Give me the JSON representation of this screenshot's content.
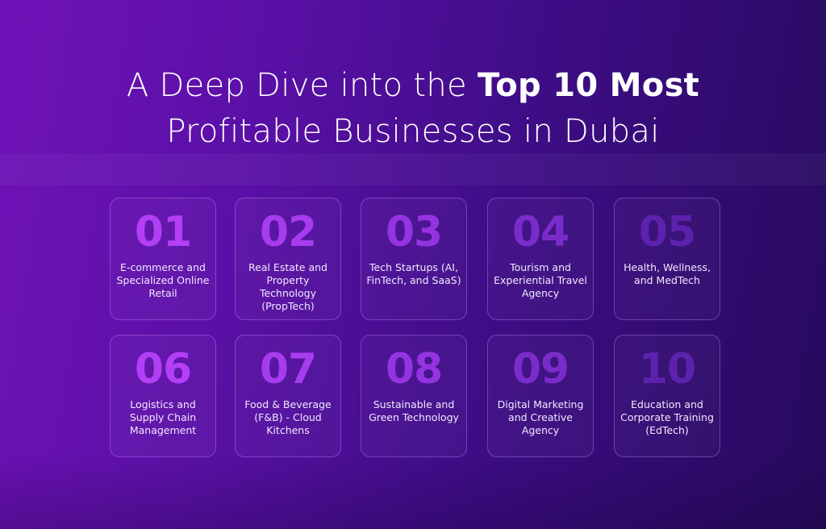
{
  "title": {
    "line1_light": "A Deep Dive into the ",
    "line1_bold": "Top 10 Most",
    "line2": "Profitable Businesses in Dubai"
  },
  "items": [
    {
      "number": "01",
      "label": "E-commerce and Specialized Online Retail",
      "color": "#b23ff5"
    },
    {
      "number": "02",
      "label": "Real Estate and Property Technology (PropTech)",
      "color": "#a63cee"
    },
    {
      "number": "03",
      "label": "Tech Startups (AI, FinTech, and SaaS)",
      "color": "#9434e0"
    },
    {
      "number": "04",
      "label": "Tourism and Experiential Travel Agency",
      "color": "#7a2cca"
    },
    {
      "number": "05",
      "label": "Health, Wellness, and MedTech",
      "color": "#5c22ad"
    },
    {
      "number": "06",
      "label": "Logistics and Supply Chain Management",
      "color": "#b23ff5"
    },
    {
      "number": "07",
      "label": "Food & Beverage (F&B) - Cloud Kitchens",
      "color": "#a63cee"
    },
    {
      "number": "08",
      "label": "Sustainable and Green Technology",
      "color": "#9434e0"
    },
    {
      "number": "09",
      "label": "Digital Marketing and Creative Agency",
      "color": "#7a2cca"
    },
    {
      "number": "10",
      "label": "Education and Corporate Training (EdTech)",
      "color": "#5c22ad"
    }
  ]
}
